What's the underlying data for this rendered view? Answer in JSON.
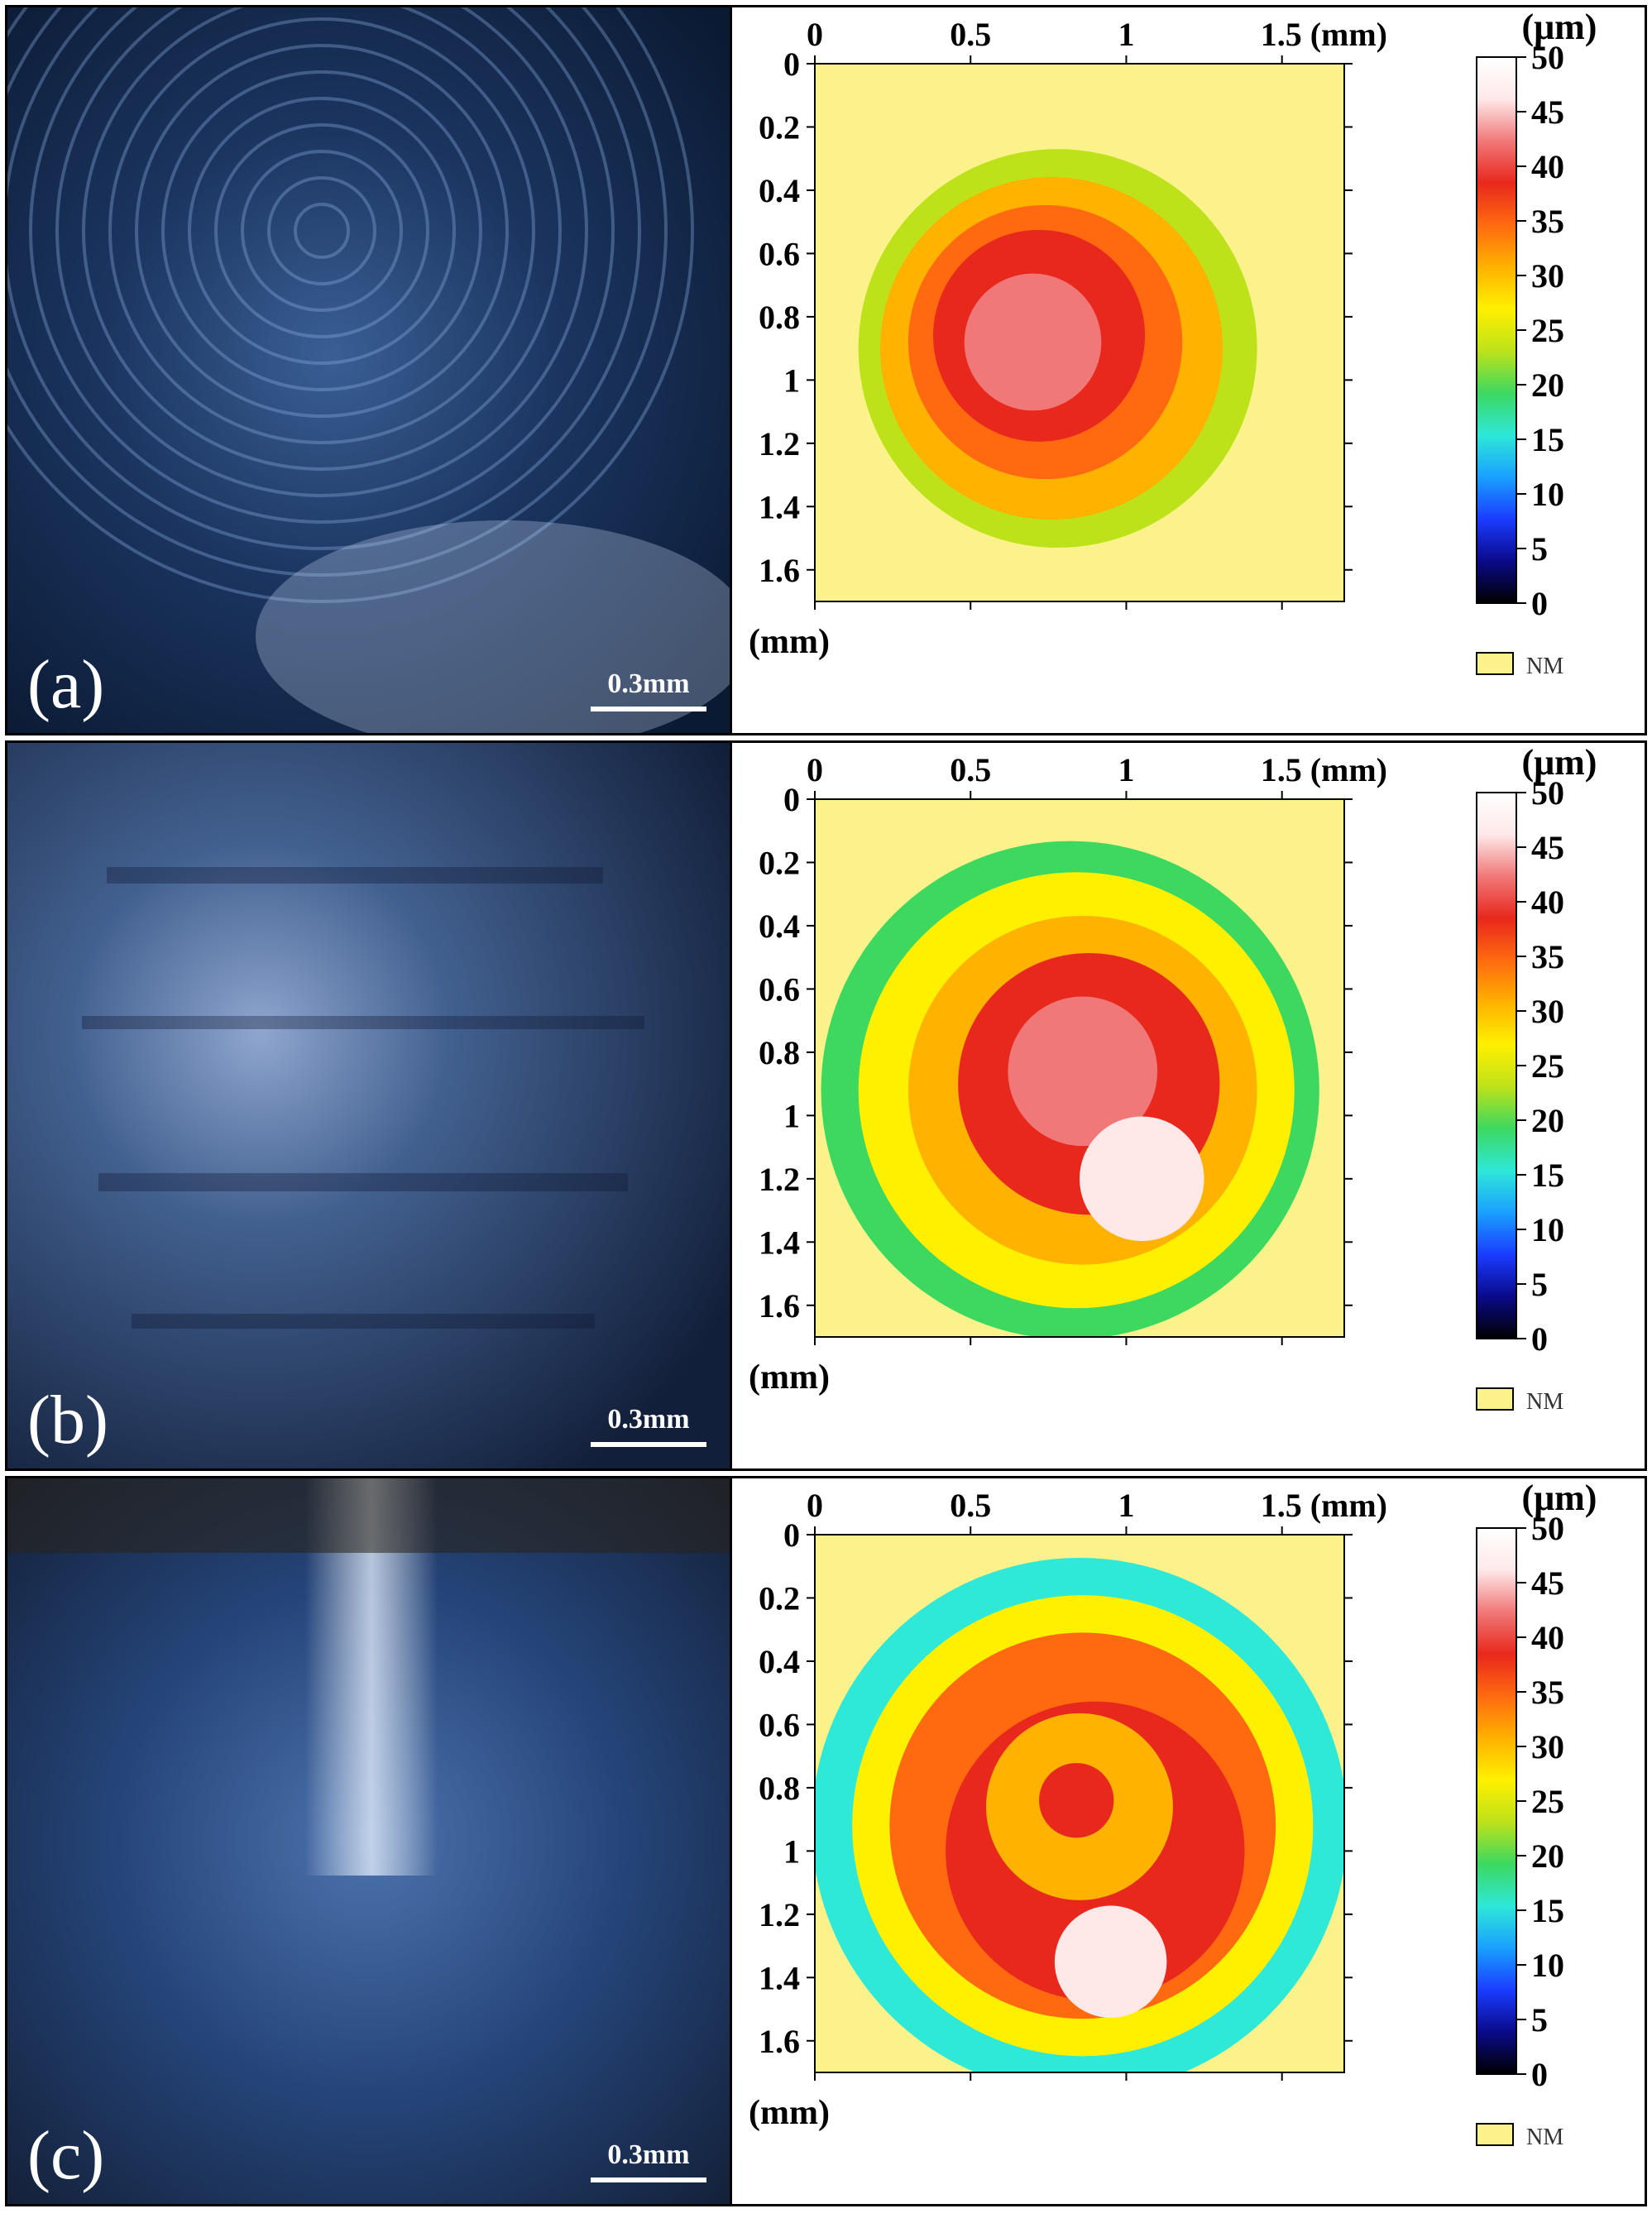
{
  "panels": [
    {
      "label": "(a)",
      "scale_bar": "0.3mm"
    },
    {
      "label": "(b)",
      "scale_bar": "0.3mm"
    },
    {
      "label": "(c)",
      "scale_bar": "0.3mm"
    }
  ],
  "colorbar": {
    "title": "(μm)",
    "min": 0,
    "max": 50,
    "ticks": [
      "0",
      "5",
      "10",
      "15",
      "20",
      "25",
      "30",
      "35",
      "40",
      "45",
      "50"
    ],
    "colors": [
      "#000000",
      "#0a0a8a",
      "#1a3cff",
      "#1aa0ff",
      "#2ee8d8",
      "#3cd860",
      "#bde21a",
      "#fff000",
      "#ffb200",
      "#ff6a10",
      "#e8281c",
      "#f07878",
      "#ffe8e8",
      "#ffffff"
    ],
    "nm_label": "NM",
    "nm_color": "#fbf28c"
  },
  "chart_data": [
    {
      "type": "heatmap",
      "panel": "(a)",
      "x_ticks": [
        "0",
        "0.5",
        "1",
        "1.5 (mm)"
      ],
      "y_ticks": [
        "0",
        "0.2",
        "0.4",
        "0.6",
        "0.8",
        "1",
        "1.2",
        "1.4",
        "1.6"
      ],
      "x_unit_label": "(mm)",
      "xlim": [
        0,
        1.7
      ],
      "ylim": [
        0,
        1.7
      ],
      "y_direction": "down",
      "rings": [
        {
          "cx": 0.78,
          "cy": 0.9,
          "r": 0.64,
          "value": 24
        },
        {
          "cx": 0.76,
          "cy": 0.9,
          "r": 0.55,
          "value": 30
        },
        {
          "cx": 0.74,
          "cy": 0.88,
          "r": 0.44,
          "value": 33
        },
        {
          "cx": 0.72,
          "cy": 0.86,
          "r": 0.34,
          "value": 38
        },
        {
          "cx": 0.7,
          "cy": 0.88,
          "r": 0.22,
          "value": 42
        }
      ]
    },
    {
      "type": "heatmap",
      "panel": "(b)",
      "x_ticks": [
        "0",
        "0.5",
        "1",
        "1.5 (mm)"
      ],
      "y_ticks": [
        "0",
        "0.2",
        "0.4",
        "0.6",
        "0.8",
        "1",
        "1.2",
        "1.4",
        "1.6"
      ],
      "x_unit_label": "(mm)",
      "xlim": [
        0,
        1.7
      ],
      "ylim": [
        0,
        1.7
      ],
      "y_direction": "down",
      "rings": [
        {
          "cx": 0.82,
          "cy": 0.92,
          "r": 0.8,
          "value": 18
        },
        {
          "cx": 0.84,
          "cy": 0.92,
          "r": 0.7,
          "value": 27
        },
        {
          "cx": 0.86,
          "cy": 0.92,
          "r": 0.56,
          "value": 32
        },
        {
          "cx": 0.88,
          "cy": 0.9,
          "r": 0.42,
          "value": 38
        },
        {
          "cx": 0.86,
          "cy": 0.86,
          "r": 0.24,
          "value": 41
        },
        {
          "cx": 1.05,
          "cy": 1.2,
          "r": 0.2,
          "value": 47
        }
      ]
    },
    {
      "type": "heatmap",
      "panel": "(c)",
      "x_ticks": [
        "0",
        "0.5",
        "1",
        "1.5 (mm)"
      ],
      "y_ticks": [
        "0",
        "0.2",
        "0.4",
        "0.6",
        "0.8",
        "1",
        "1.2",
        "1.4",
        "1.6"
      ],
      "x_unit_label": "(mm)",
      "xlim": [
        0,
        1.7
      ],
      "ylim": [
        0,
        1.7
      ],
      "y_direction": "down",
      "rings": [
        {
          "cx": 0.85,
          "cy": 0.92,
          "r": 0.86,
          "value": 14
        },
        {
          "cx": 0.86,
          "cy": 0.92,
          "r": 0.74,
          "value": 26
        },
        {
          "cx": 0.86,
          "cy": 0.92,
          "r": 0.62,
          "value": 36
        },
        {
          "cx": 0.9,
          "cy": 1.0,
          "r": 0.48,
          "value": 40
        },
        {
          "cx": 0.85,
          "cy": 0.86,
          "r": 0.3,
          "value": 31
        },
        {
          "cx": 0.84,
          "cy": 0.84,
          "r": 0.12,
          "value": 38
        },
        {
          "cx": 0.95,
          "cy": 1.35,
          "r": 0.18,
          "value": 47
        }
      ]
    }
  ]
}
